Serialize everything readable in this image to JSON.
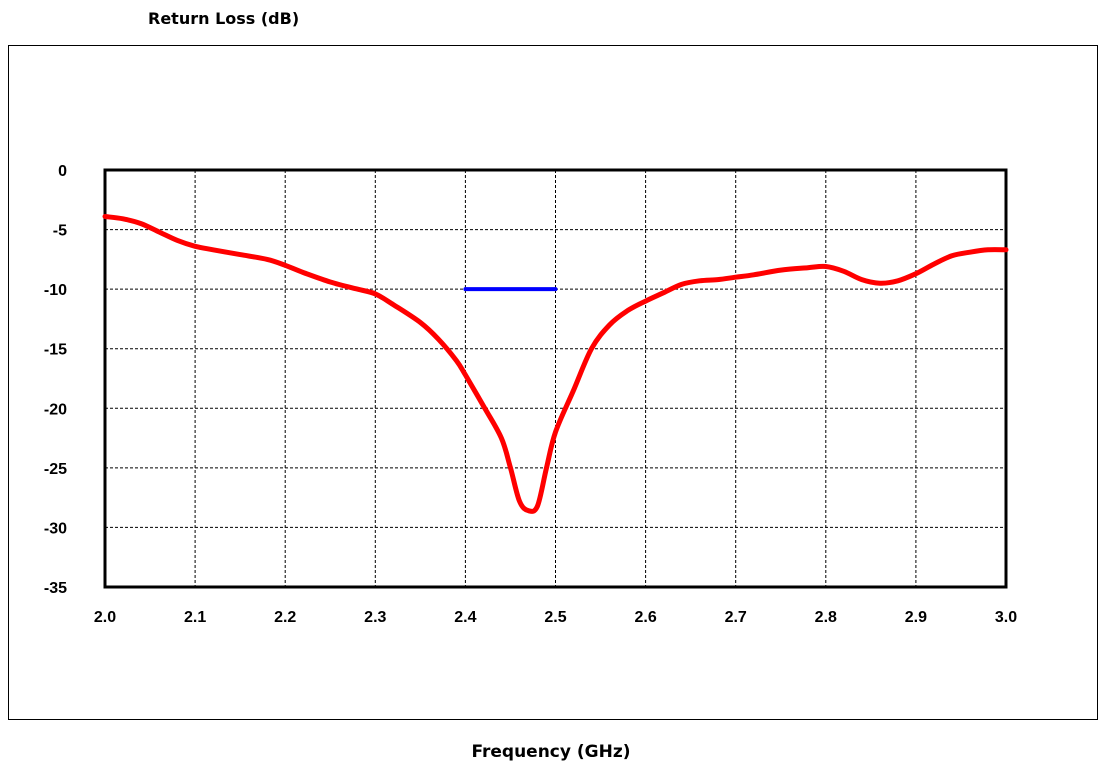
{
  "chart_data": {
    "type": "line",
    "title": "",
    "ylabel": "Return Loss (dB)",
    "xlabel": "Frequency (GHz)",
    "xlim": [
      2.0,
      3.0
    ],
    "ylim": [
      -35,
      0
    ],
    "grid": true,
    "x_ticks": [
      "2.0",
      "2.1",
      "2.2",
      "2.3",
      "2.4",
      "2.5",
      "2.6",
      "2.7",
      "2.8",
      "2.9",
      "3.0"
    ],
    "y_ticks": [
      "0",
      "-5",
      "-10",
      "-15",
      "-20",
      "-25",
      "-30",
      "-35"
    ],
    "series": [
      {
        "color": "#ff0000",
        "x": [
          2.0,
          2.02,
          2.04,
          2.06,
          2.08,
          2.1,
          2.12,
          2.15,
          2.18,
          2.2,
          2.22,
          2.25,
          2.28,
          2.3,
          2.32,
          2.35,
          2.37,
          2.39,
          2.4,
          2.42,
          2.44,
          2.45,
          2.46,
          2.47,
          2.48,
          2.49,
          2.5,
          2.52,
          2.54,
          2.56,
          2.58,
          2.6,
          2.62,
          2.64,
          2.66,
          2.68,
          2.7,
          2.72,
          2.75,
          2.78,
          2.8,
          2.82,
          2.84,
          2.86,
          2.88,
          2.9,
          2.92,
          2.94,
          2.96,
          2.98,
          3.0
        ],
        "y": [
          -3.9,
          -4.1,
          -4.5,
          -5.2,
          -5.9,
          -6.4,
          -6.7,
          -7.1,
          -7.5,
          -8.0,
          -8.6,
          -9.4,
          -10.0,
          -10.4,
          -11.3,
          -12.8,
          -14.2,
          -16.0,
          -17.2,
          -19.8,
          -22.5,
          -25.0,
          -27.8,
          -28.6,
          -28.2,
          -25.0,
          -22.0,
          -18.5,
          -15.0,
          -13.0,
          -11.8,
          -11.0,
          -10.3,
          -9.6,
          -9.3,
          -9.2,
          -9.0,
          -8.8,
          -8.4,
          -8.2,
          -8.1,
          -8.5,
          -9.2,
          -9.5,
          -9.3,
          -8.7,
          -7.9,
          -7.2,
          -6.9,
          -6.7,
          -6.7
        ]
      },
      {
        "color": "#0000ff",
        "x": [
          2.4,
          2.5
        ],
        "y": [
          -10,
          -10
        ]
      }
    ]
  }
}
